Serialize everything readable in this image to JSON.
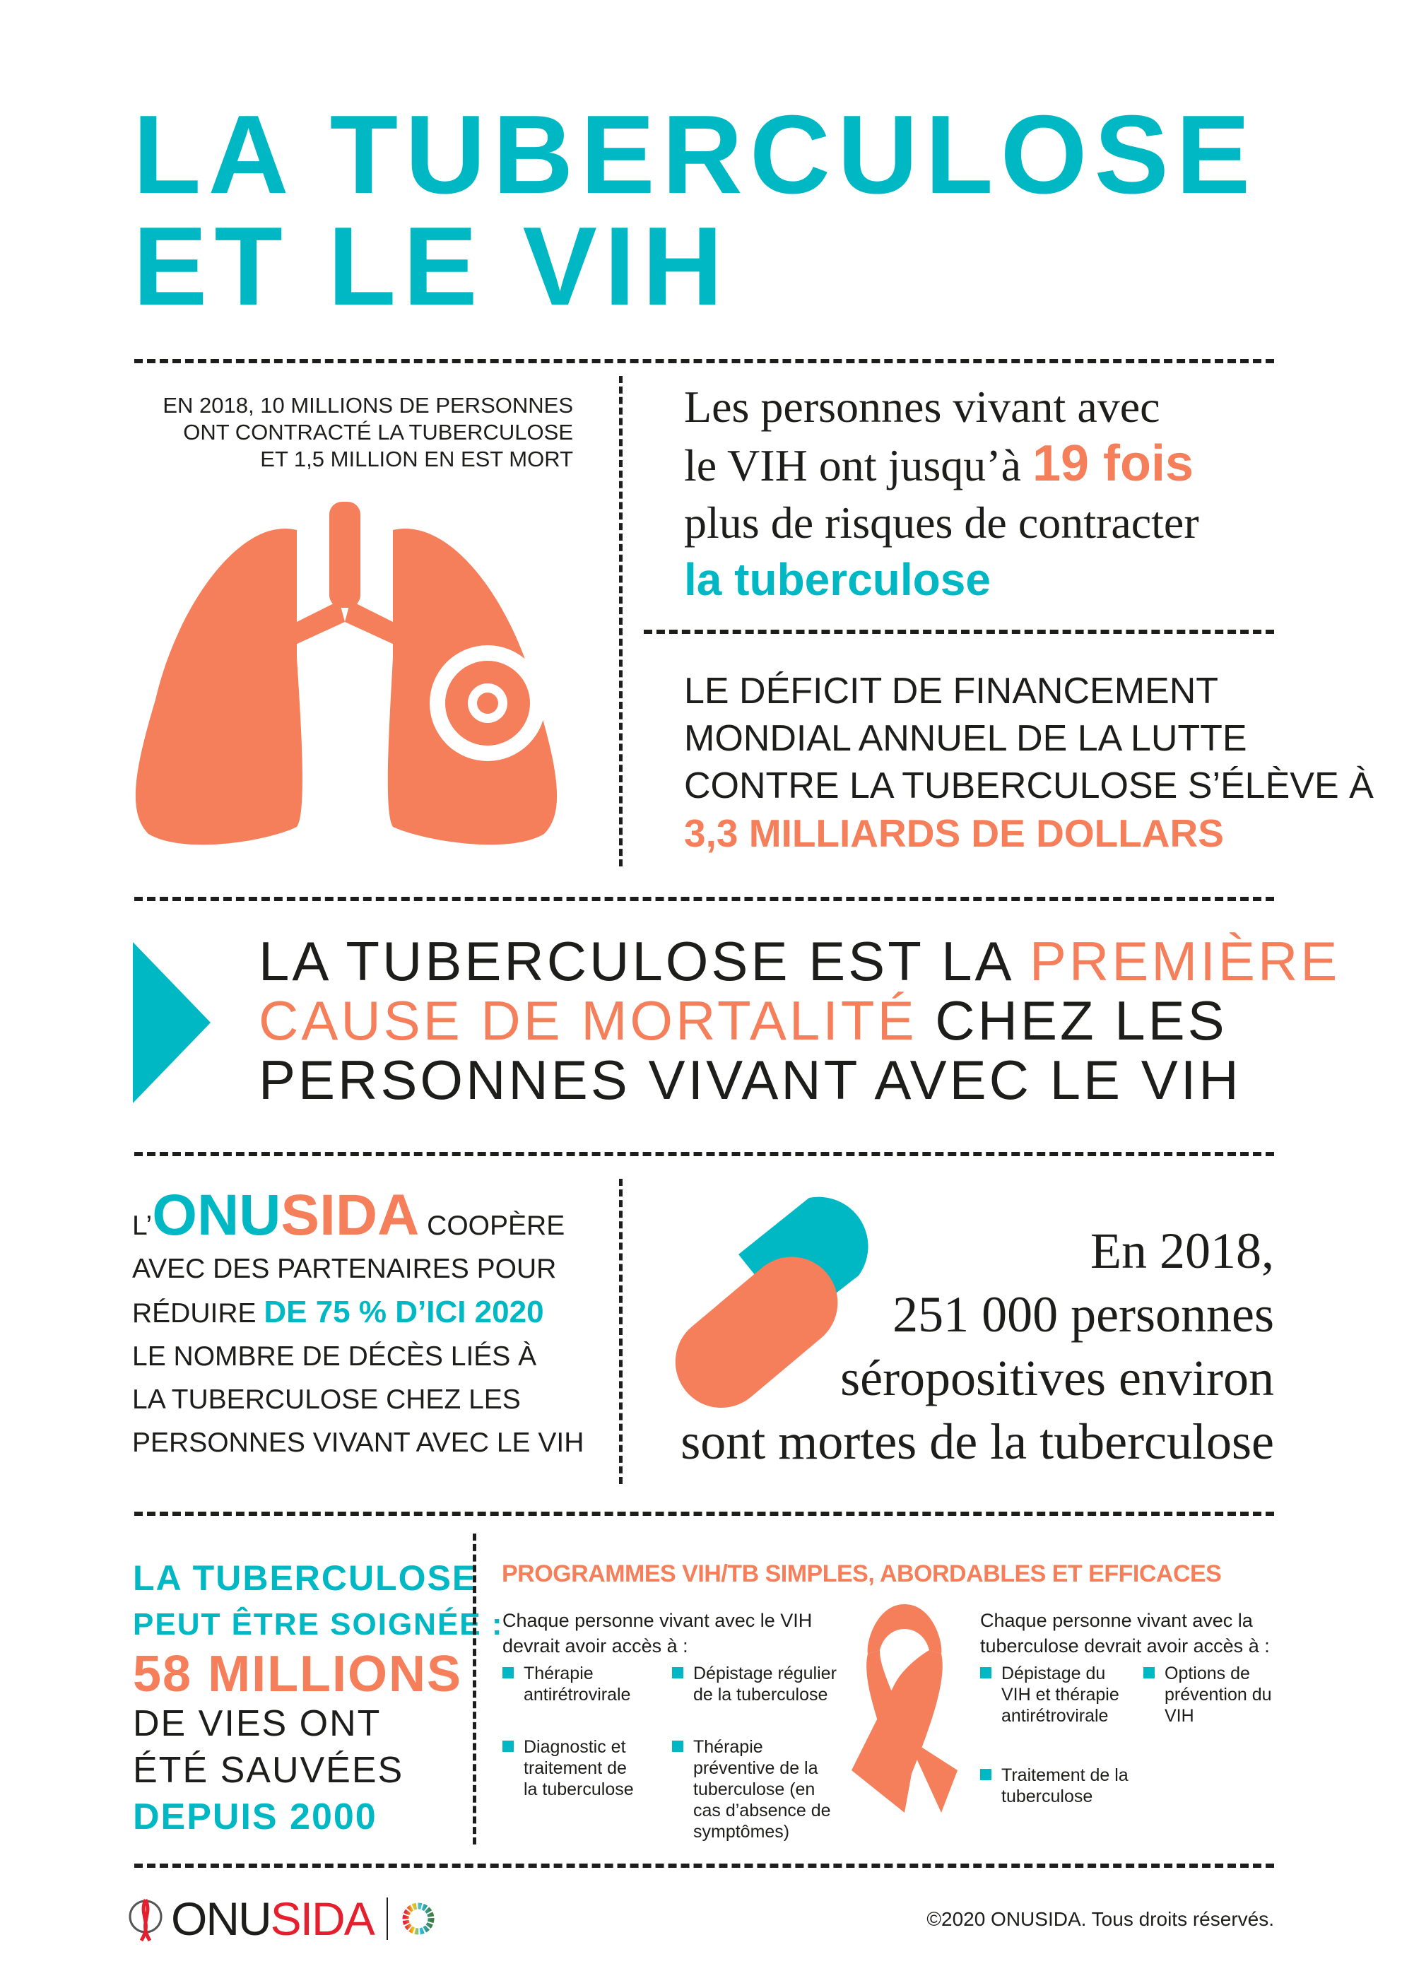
{
  "title": {
    "line1": "LA TUBERCULOSE",
    "line2": "ET LE VIH"
  },
  "stat1": {
    "line1": "EN 2018, 10 MILLIONS DE PERSONNES",
    "line2": "ONT CONTRACTÉ LA TUBERCULOSE",
    "line3": "ET 1,5 MILLION EN EST MORT"
  },
  "risk": {
    "line1": "Les personnes vivant avec",
    "line2": "le VIH ont jusqu’à ",
    "highlight": "19 fois",
    "line3": "plus de risques de contracter",
    "line4": "la tuberculose"
  },
  "funding": {
    "line1": "LE DÉFICIT DE FINANCEMENT",
    "line2": "MONDIAL ANNUEL DE LA LUTTE",
    "line3": "CONTRE LA TUBERCULOSE S’ÉLÈVE À",
    "amount": "3,3 MILLIARDS DE DOLLARS"
  },
  "cause": {
    "p1": "LA TUBERCULOSE EST LA ",
    "h1": "PREMIÈRE",
    "h2": "CAUSE DE MORTALITÉ",
    "p2": " CHEZ LES",
    "p3": "PERSONNES VIVANT AVEC LE VIH"
  },
  "onusida": {
    "prefix": "L’",
    "onu": "ONU",
    "sida": "SIDA",
    "l1": " COOPÈRE",
    "l2": "AVEC DES PARTENAIRES POUR",
    "l3": "RÉDUIRE ",
    "h": "DE 75 % D’ICI 2020",
    "l4": "LE NOMBRE DE DÉCÈS LIÉS À",
    "l5": "LA TUBERCULOSE CHEZ LES",
    "l6": "PERSONNES VIVANT AVEC LE VIH"
  },
  "deaths": {
    "l1": "En 2018,",
    "l2": "251 000 personnes",
    "l3": "séropositives environ",
    "l4": "sont mortes de la tuberculose"
  },
  "saved": {
    "l1": "LA TUBERCULOSE",
    "l2": "PEUT ÊTRE SOIGNÉE :",
    "l3": "58 MILLIONS",
    "l4": "DE VIES ONT",
    "l5": "ÉTÉ SAUVÉES",
    "l6": "DEPUIS 2000"
  },
  "programs": {
    "title": "PROGRAMMES VIH/TB SIMPLES, ABORDABLES ET EFFICACES",
    "hiv_intro": "Chaque personne vivant avec le VIH devrait avoir accès à :",
    "hiv_items": [
      "Thérapie antirétrovirale",
      "Dépistage régulier de la tuberculose",
      "Diagnostic et traitement de la tuberculose",
      "Thérapie préventive de la tuberculose (en cas d’absence de symptômes)"
    ],
    "tb_intro": "Chaque personne vivant avec la tuberculose devrait avoir accès à :",
    "tb_items": [
      "Dépistage du VIH et thérapie antirétrovirale",
      "Options de prévention du VIH",
      "Traitement de la tuberculose"
    ]
  },
  "footer": {
    "logo_onu": "ONU",
    "logo_sida": "SIDA",
    "copyright": "©2020 ONUSIDA. Tous droits réservés."
  },
  "colors": {
    "teal": "#00b8c4",
    "orange": "#f47f5a",
    "dark": "#1d1d1b"
  }
}
